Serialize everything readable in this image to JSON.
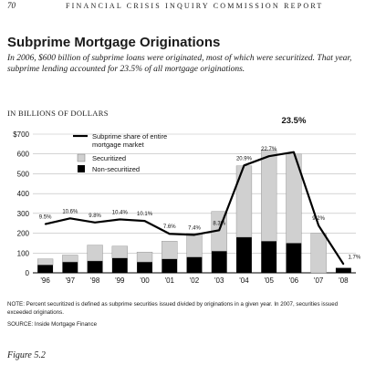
{
  "header": {
    "page_number": "70",
    "running_title": "Financial Crisis Inquiry Commission Report"
  },
  "figure": {
    "title": "Subprime Mortgage Originations",
    "subtitle": "In 2006, $600 billion of subprime loans were originated, most of which were securitized. That year, subprime lending accounted for 23.5% of all mortgage originations.",
    "units_label": "IN BILLIONS OF DOLLARS",
    "note": "NOTE: Percent securitized is defined as subprime securities issued divided by originations in a given year. In 2007, securities issued exceeded originations.",
    "source": "SOURCE: Inside Mortgage Finance",
    "caption": "Figure 5.2"
  },
  "colors": {
    "securitized": "#d0d0d0",
    "non_securitized": "#000000",
    "share_line": "#000000",
    "gridline": "#bbbbbb"
  },
  "chart_data": {
    "type": "bar",
    "categories": [
      "'96",
      "'97",
      "'98",
      "'99",
      "'00",
      "'01",
      "'02",
      "'03",
      "'04",
      "'05",
      "'06",
      "'07",
      "'08"
    ],
    "series": [
      {
        "name": "Securitized",
        "kind": "stacked-bar",
        "values": [
          30,
          35,
          80,
          60,
          50,
          90,
          120,
          200,
          360,
          460,
          450,
          200,
          0
        ]
      },
      {
        "name": "Non-securitized",
        "kind": "stacked-bar",
        "values": [
          40,
          55,
          60,
          75,
          55,
          70,
          80,
          110,
          180,
          160,
          150,
          0,
          25
        ]
      },
      {
        "name": "Subprime share of entire mortgage market",
        "kind": "line",
        "axis": "share",
        "values": [
          9.5,
          10.6,
          9.8,
          10.4,
          10.1,
          7.6,
          7.4,
          8.3,
          20.9,
          22.7,
          23.5,
          9.2,
          1.7
        ],
        "labels": [
          "9.5%",
          "10.6%",
          "9.8%",
          "10.4%",
          "10.1%",
          "7.6%",
          "7.4%",
          "8.3%",
          "20.9%",
          "22.7%",
          "23.5%",
          "9.2%",
          "1.7%"
        ]
      }
    ],
    "yticks": [
      "$700",
      "600",
      "500",
      "400",
      "300",
      "200",
      "100",
      "0"
    ],
    "ytick_values": [
      700,
      600,
      500,
      400,
      300,
      200,
      100,
      0
    ],
    "ylim": [
      0,
      700
    ],
    "share_scale": [
      0,
      27
    ],
    "grid": true,
    "legend_position": "top-left",
    "xlabel": "",
    "ylabel": "IN BILLIONS OF DOLLARS"
  }
}
